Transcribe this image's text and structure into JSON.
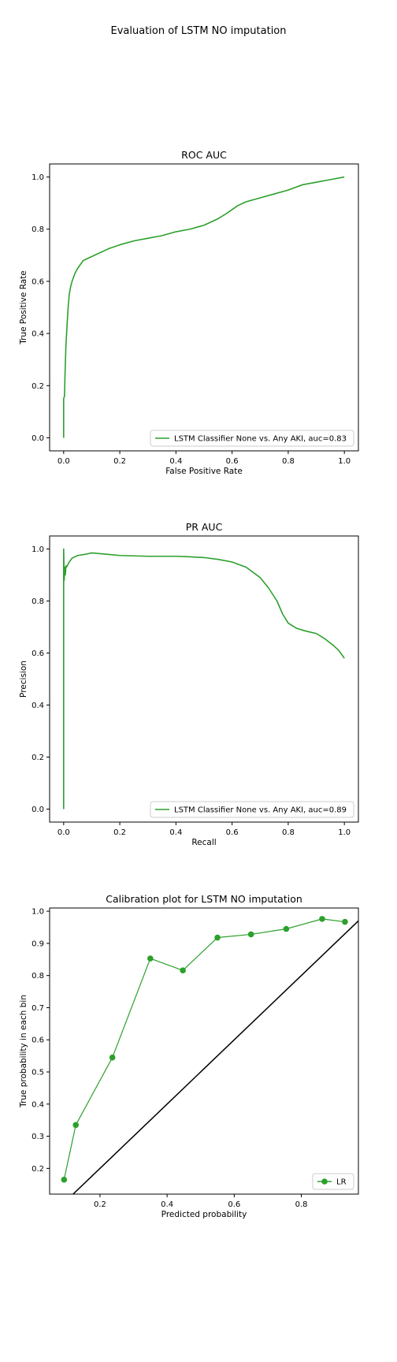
{
  "figure": {
    "suptitle": "Evaluation of LSTM NO imputation"
  },
  "chart_data": [
    {
      "type": "line",
      "title": "ROC AUC",
      "xlabel": "False Positive Rate",
      "ylabel": "True Positive Rate",
      "xlim": [
        -0.05,
        1.05
      ],
      "ylim": [
        -0.05,
        1.05
      ],
      "xticks": [
        "0.0",
        "0.2",
        "0.4",
        "0.6",
        "0.8",
        "1.0"
      ],
      "yticks": [
        "0.0",
        "0.2",
        "0.4",
        "0.6",
        "0.8",
        "1.0"
      ],
      "legend_position": "lower right",
      "color": "#2ca02c",
      "series": [
        {
          "name": "LSTM Classifier None vs. Any AKI, auc=0.83",
          "x": [
            0.0,
            0.0,
            0.003,
            0.005,
            0.008,
            0.012,
            0.016,
            0.02,
            0.025,
            0.03,
            0.04,
            0.05,
            0.06,
            0.07,
            0.08,
            0.1,
            0.13,
            0.16,
            0.2,
            0.25,
            0.3,
            0.35,
            0.4,
            0.45,
            0.5,
            0.55,
            0.58,
            0.6,
            0.62,
            0.65,
            0.7,
            0.75,
            0.8,
            0.85,
            0.9,
            0.95,
            1.0
          ],
          "y": [
            0.0,
            0.15,
            0.16,
            0.25,
            0.35,
            0.43,
            0.5,
            0.55,
            0.58,
            0.6,
            0.63,
            0.65,
            0.665,
            0.68,
            0.685,
            0.695,
            0.71,
            0.725,
            0.74,
            0.755,
            0.765,
            0.775,
            0.79,
            0.8,
            0.815,
            0.84,
            0.86,
            0.875,
            0.89,
            0.905,
            0.92,
            0.935,
            0.95,
            0.97,
            0.98,
            0.99,
            1.0
          ]
        }
      ]
    },
    {
      "type": "line",
      "title": "PR AUC",
      "xlabel": "Recall",
      "ylabel": "Precision",
      "xlim": [
        -0.05,
        1.05
      ],
      "ylim": [
        -0.05,
        1.05
      ],
      "xticks": [
        "0.0",
        "0.2",
        "0.4",
        "0.6",
        "0.8",
        "1.0"
      ],
      "yticks": [
        "0.0",
        "0.2",
        "0.4",
        "0.6",
        "0.8",
        "1.0"
      ],
      "legend_position": "lower right",
      "color": "#2ca02c",
      "series": [
        {
          "name": "LSTM Classifier None vs. Any AKI, auc=0.89",
          "x": [
            0.0,
            0.0,
            0.002,
            0.004,
            0.006,
            0.008,
            0.01,
            0.015,
            0.02,
            0.03,
            0.05,
            0.08,
            0.1,
            0.15,
            0.2,
            0.3,
            0.4,
            0.45,
            0.5,
            0.55,
            0.6,
            0.65,
            0.7,
            0.73,
            0.76,
            0.78,
            0.8,
            0.83,
            0.86,
            0.9,
            0.93,
            0.96,
            0.98,
            1.0
          ],
          "y": [
            0.0,
            1.0,
            0.88,
            0.93,
            0.9,
            0.935,
            0.93,
            0.94,
            0.95,
            0.965,
            0.975,
            0.98,
            0.985,
            0.98,
            0.975,
            0.972,
            0.972,
            0.97,
            0.967,
            0.96,
            0.95,
            0.93,
            0.89,
            0.85,
            0.8,
            0.75,
            0.715,
            0.695,
            0.685,
            0.675,
            0.655,
            0.63,
            0.61,
            0.58
          ]
        }
      ]
    },
    {
      "type": "line",
      "title": "Calibration plot for LSTM NO imputation",
      "xlabel": "Predicted probability",
      "ylabel": "True probability in each bin",
      "xlim": [
        0.05,
        0.97
      ],
      "ylim": [
        0.12,
        1.01
      ],
      "xticks": [
        "0.2",
        "0.4",
        "0.6",
        "0.8"
      ],
      "yticks": [
        "0.2",
        "0.3",
        "0.4",
        "0.5",
        "0.6",
        "0.7",
        "0.8",
        "0.9",
        "1.0"
      ],
      "legend_position": "lower right",
      "color": "#2ca02c",
      "reference_line": {
        "x": [
          0.0,
          1.0
        ],
        "y": [
          0.0,
          1.0
        ],
        "color": "#000000"
      },
      "series": [
        {
          "name": "LR",
          "x": [
            0.093,
            0.128,
            0.237,
            0.35,
            0.447,
            0.55,
            0.65,
            0.755,
            0.862,
            0.93
          ],
          "y": [
            0.165,
            0.335,
            0.545,
            0.853,
            0.816,
            0.918,
            0.928,
            0.945,
            0.976,
            0.967
          ]
        }
      ]
    }
  ]
}
